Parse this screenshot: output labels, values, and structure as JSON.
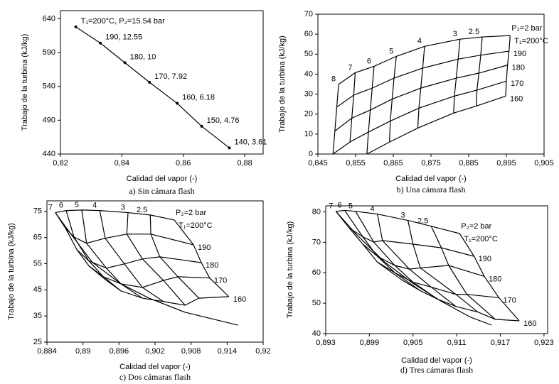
{
  "chart_data": [
    {
      "type": "line",
      "caption": "a) Sin cámara flash",
      "x_label": "Calidad del vapor (-)",
      "y_label": "Trabajo de la turbina (kJ/kg)",
      "color": "#000000",
      "x": [
        0.825,
        0.833,
        0.841,
        0.849,
        0.858,
        0.866,
        0.875
      ],
      "values": [
        628,
        604,
        575,
        546,
        515,
        481,
        449
      ],
      "point_labels": [
        "T₁=200°C, P₂=15.54 bar",
        "190, 12.55",
        "180, 10",
        "170, 7.92",
        "160, 6.18",
        "150, 4.76",
        "140, 3.61"
      ],
      "xlim": [
        0.82,
        0.886
      ],
      "xticks": [
        {
          "value": 0.82,
          "label": "0,82"
        },
        {
          "value": 0.84,
          "label": "0,84"
        },
        {
          "value": 0.86,
          "label": "0,86"
        },
        {
          "value": 0.88,
          "label": "0,88"
        }
      ],
      "ylim": [
        440,
        652
      ],
      "yticks": [
        440,
        490,
        540,
        590,
        640
      ]
    },
    {
      "type": "carpet",
      "caption": "b) Una cámara flash",
      "x_label": "Calidad del vapor (-)",
      "y_label": "Trabajo de la turbina (kJ/kg)",
      "color": "#000000",
      "isobars": [
        "8",
        "7",
        "6",
        "5",
        "4",
        "3",
        "2.5",
        "P₂=2 bar"
      ],
      "isotherms": [
        {
          "name": "T₁=200°C",
          "x": [
            0.8505,
            0.8549,
            0.8599,
            0.8658,
            0.8733,
            0.8827,
            0.8886,
            0.896
          ],
          "values": [
            34.9,
            40.7,
            43.9,
            48.9,
            53.9,
            57.5,
            58.6,
            59.3
          ]
        },
        {
          "name": "190",
          "x": [
            0.85,
            0.8545,
            0.8594,
            0.8652,
            0.8728,
            0.8822,
            0.8882,
            0.8957
          ],
          "values": [
            23.5,
            29.5,
            33,
            38,
            43,
            47.5,
            49.5,
            51.5
          ]
        },
        {
          "name": "180",
          "x": [
            0.8495,
            0.854,
            0.8589,
            0.8647,
            0.8723,
            0.8817,
            0.8877,
            0.8953
          ],
          "values": [
            11.5,
            18,
            22,
            27.5,
            33,
            38,
            40.5,
            44.5
          ]
        },
        {
          "name": "170",
          "x": [
            0.849,
            0.8535,
            0.8584,
            0.8642,
            0.8718,
            0.8812,
            0.8872,
            0.895
          ],
          "values": [
            0,
            6,
            11,
            16.5,
            23,
            29,
            32,
            36.5
          ]
        },
        {
          "name": "160",
          "x": [
            null,
            null,
            0.858,
            0.864,
            0.8715,
            0.881,
            0.887,
            0.8948
          ],
          "values": [
            null,
            null,
            0,
            6,
            13,
            20.5,
            24,
            29
          ]
        }
      ],
      "xlim": [
        0.845,
        0.905
      ],
      "xticks": [
        {
          "value": 0.845,
          "label": "0,845"
        },
        {
          "value": 0.855,
          "label": "0,855"
        },
        {
          "value": 0.865,
          "label": "0,865"
        },
        {
          "value": 0.875,
          "label": "0,875"
        },
        {
          "value": 0.885,
          "label": "0,885"
        },
        {
          "value": 0.895,
          "label": "0,895"
        },
        {
          "value": 0.905,
          "label": "0,905"
        }
      ],
      "ylim": [
        0,
        70
      ],
      "yticks": [
        0,
        10,
        20,
        30,
        40,
        50,
        60,
        70
      ]
    },
    {
      "type": "carpet",
      "caption": "c) Dos cámaras flash",
      "x_label": "Calidad del vapor (-)",
      "y_label": "Trabajo de la turbina (kJ/kg)",
      "color": "#000000",
      "isobars": [
        "7",
        "6",
        "5",
        "4",
        "3",
        "2.5",
        "P₂=2 bar"
      ],
      "isotherms": [
        {
          "name": "T₁=200°C",
          "x": [
            0.8854,
            0.8872,
            0.8898,
            0.8928,
            0.8975,
            0.9012,
            0.9052
          ],
          "values": [
            74.5,
            75.3,
            75.5,
            75.3,
            74.5,
            73.6,
            71.7
          ]
        },
        {
          "name": "190",
          "x": [
            0.8871,
            0.8885,
            0.8906,
            0.8937,
            0.8973,
            0.9013,
            0.9084
          ],
          "values": [
            68.5,
            65.2,
            62.8,
            64.7,
            66.3,
            66.3,
            62.2
          ]
        },
        {
          "name": "180",
          "x": [
            0.889,
            0.891,
            0.8939,
            0.8969,
            0.8999,
            0.9028,
            0.9097
          ],
          "values": [
            60.3,
            56,
            53.3,
            54.9,
            56.8,
            57.6,
            55.4
          ]
        },
        {
          "name": "170",
          "x": [
            0.891,
            0.8934,
            0.8963,
            0.8999,
            0.9034,
            0.9058,
            0.9111
          ],
          "values": [
            54.1,
            50,
            47.3,
            45.9,
            48.6,
            50,
            49.5
          ]
        },
        {
          "name": "160",
          "x": [
            0.8939,
            0.8963,
            0.8999,
            0.9034,
            0.907,
            0.9093,
            0.9143
          ],
          "values": [
            48.6,
            44.6,
            41.8,
            40.5,
            39.1,
            41.8,
            42.4
          ]
        }
      ],
      "envelope": {
        "x": [
          0.8854,
          0.888,
          0.8916,
          0.8963,
          0.901,
          0.907,
          0.9158
        ],
        "values": [
          74.5,
          66.3,
          55.4,
          47.3,
          41.8,
          36.4,
          31.5
        ]
      },
      "xlim": [
        0.884,
        0.92
      ],
      "xticks": [
        {
          "value": 0.884,
          "label": "0,884"
        },
        {
          "value": 0.89,
          "label": "0,89"
        },
        {
          "value": 0.896,
          "label": "0,896"
        },
        {
          "value": 0.902,
          "label": "0,902"
        },
        {
          "value": 0.908,
          "label": "0,908"
        },
        {
          "value": 0.914,
          "label": "0,914"
        },
        {
          "value": 0.92,
          "label": "0,92"
        }
      ],
      "ylim": [
        25,
        79
      ],
      "yticks": [
        25,
        35,
        45,
        55,
        65,
        75
      ]
    },
    {
      "type": "carpet",
      "caption": "d) Tres cámaras flash",
      "x_label": "Calidad del vapor (-)",
      "y_label": "Trabajo de la turbina (kJ/kg)",
      "color": "#000000",
      "isobars": [
        "7",
        "6",
        "5",
        "4",
        "3",
        "2.5",
        "P₂=2 bar"
      ],
      "isotherms": [
        {
          "name": "T₁=200°C",
          "x": [
            0.8944,
            0.8956,
            0.8971,
            0.9001,
            0.9043,
            0.9075,
            0.9114
          ],
          "values": [
            80.2,
            80.5,
            80.2,
            79.3,
            77.2,
            75.3,
            72.9
          ]
        },
        {
          "name": "190",
          "x": [
            0.8962,
            0.8981,
            0.8996,
            0.9008,
            0.905,
            0.9089,
            0.9134
          ],
          "values": [
            74.8,
            71.8,
            70.1,
            70.6,
            69.4,
            68.2,
            65.4
          ]
        },
        {
          "name": "180",
          "x": [
            0.8981,
            0.9001,
            0.9025,
            0.9045,
            0.906,
            0.9099,
            0.9148
          ],
          "values": [
            69.4,
            65.4,
            62.4,
            61.2,
            61.6,
            62.4,
            58.8
          ]
        },
        {
          "name": "170",
          "x": [
            0.9001,
            0.9025,
            0.905,
            0.9075,
            0.9109,
            0.9124,
            0.9168
          ],
          "values": [
            63.5,
            60,
            56.9,
            55.3,
            52.9,
            52.9,
            51.8
          ]
        },
        {
          "name": "160",
          "x": [
            0.9035,
            0.906,
            0.9084,
            0.9109,
            0.9139,
            0.9163,
            0.9196
          ],
          "values": [
            57.6,
            54.1,
            51.3,
            48.9,
            47.1,
            44.7,
            44.2
          ]
        }
      ],
      "envelope": {
        "x": [
          0.8944,
          0.8971,
          0.9011,
          0.905,
          0.9089,
          0.9129,
          0.9158
        ],
        "values": [
          80.2,
          72.9,
          63.5,
          56.5,
          50.6,
          45.4,
          42.8
        ]
      },
      "xlim": [
        0.893,
        0.9235
      ],
      "xticks": [
        {
          "value": 0.893,
          "label": "0,893"
        },
        {
          "value": 0.899,
          "label": "0,899"
        },
        {
          "value": 0.905,
          "label": "0,905"
        },
        {
          "value": 0.911,
          "label": "0,911"
        },
        {
          "value": 0.917,
          "label": "0,917"
        },
        {
          "value": 0.923,
          "label": "0,923"
        }
      ],
      "ylim": [
        40,
        82
      ],
      "yticks": [
        40,
        50,
        60,
        70,
        80
      ]
    }
  ]
}
